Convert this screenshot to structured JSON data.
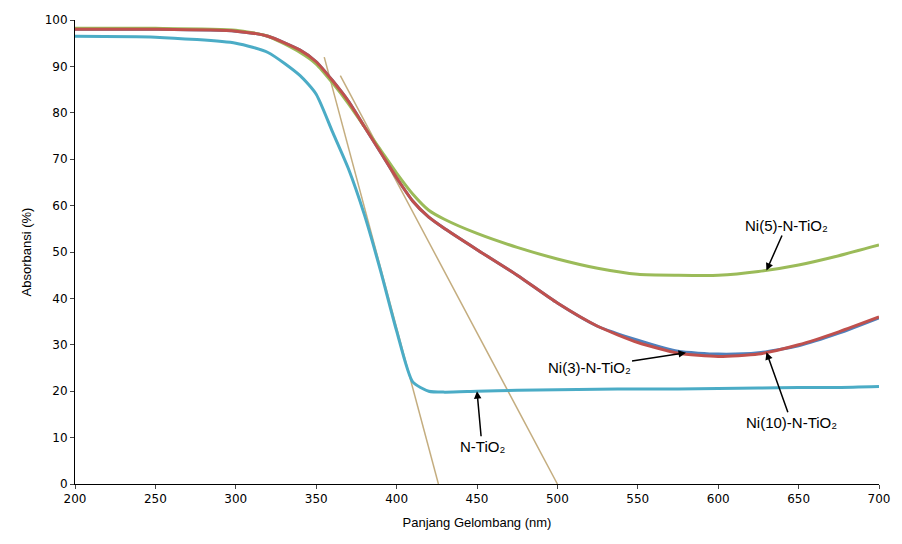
{
  "chart_data": {
    "type": "line",
    "x_label": "Panjang Gelombang (nm)",
    "y_label": "Absorbansi (%)",
    "x": [
      200,
      250,
      300,
      320,
      340,
      350,
      360,
      370,
      380,
      390,
      400,
      410,
      420,
      430,
      450,
      475,
      500,
      525,
      550,
      575,
      600,
      625,
      650,
      675,
      700
    ],
    "series": [
      {
        "name": "Ni(10)-N-TiO₂",
        "color": "#4f81bd",
        "values": [
          98,
          98,
          97.6,
          96.5,
          93.5,
          91,
          87,
          82.5,
          77,
          71.5,
          66,
          61,
          57.5,
          55,
          50.5,
          45,
          39,
          34,
          31,
          28.6,
          28,
          28.3,
          29.8,
          32.5,
          35.8
        ],
        "label_point": [
          630,
          28.4
        ]
      },
      {
        "name": "N-TiO₂",
        "color": "#4bacc6",
        "values": [
          96.5,
          96.3,
          95,
          93,
          88,
          84,
          76,
          68,
          58,
          46,
          33,
          22,
          20,
          19.8,
          20,
          20.2,
          20.3,
          20.4,
          20.5,
          20.5,
          20.6,
          20.7,
          20.8,
          20.8,
          21
        ],
        "label_point": [
          450,
          20
        ]
      },
      {
        "name": "Ni(5)-N-TiO₂",
        "color": "#9bbb59",
        "values": [
          98.2,
          98.2,
          97.8,
          96.5,
          93,
          90.5,
          86.5,
          82,
          77,
          72,
          67,
          62.5,
          59,
          57,
          54,
          51,
          48.5,
          46.5,
          45.2,
          45,
          45,
          45.8,
          47.2,
          49.2,
          51.5
        ],
        "label_point": [
          630,
          46
        ]
      },
      {
        "name": "Ni(3)-N-TiO₂",
        "color": "#c0504d",
        "values": [
          98,
          98,
          97.6,
          96.5,
          93.5,
          91,
          87,
          82.5,
          77,
          71.5,
          66,
          61,
          57.5,
          55,
          50.5,
          45,
          39,
          34,
          30.5,
          28.2,
          27.5,
          28,
          30,
          32.8,
          36
        ],
        "label_point": [
          580,
          28.3
        ]
      }
    ],
    "tangent_lines": [
      {
        "x": [
          355,
          426
        ],
        "y": [
          92,
          0
        ],
        "color": "#c4ad7f"
      },
      {
        "x": [
          365,
          500
        ],
        "y": [
          88,
          0
        ],
        "color": "#c4ad7f"
      }
    ],
    "xlim": [
      200,
      700
    ],
    "xticks": [
      200,
      250,
      300,
      350,
      400,
      450,
      500,
      550,
      600,
      650,
      700
    ],
    "ylim": [
      0,
      100
    ],
    "yticks": [
      0,
      10,
      20,
      30,
      40,
      50,
      60,
      70,
      80,
      90,
      100
    ],
    "grid": false
  }
}
